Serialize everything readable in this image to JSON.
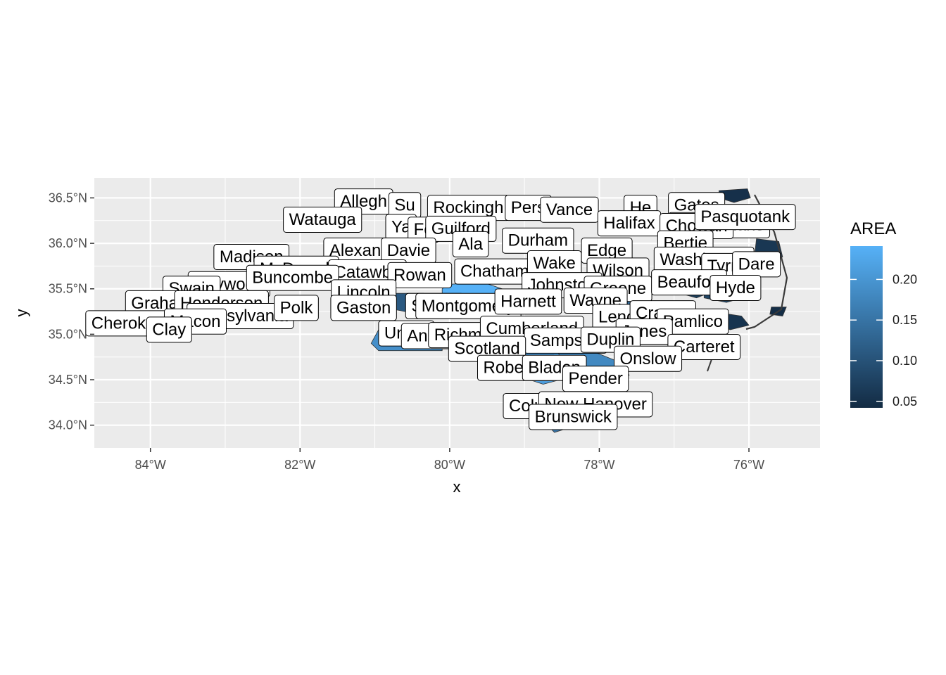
{
  "chart_data": {
    "type": "choropleth-map",
    "title": "",
    "xlabel": "x",
    "ylabel": "y",
    "xlim": [
      -84.75,
      -75.05
    ],
    "ylim": [
      33.75,
      36.72
    ],
    "x_ticks": [
      {
        "value": -84,
        "label": "84°W"
      },
      {
        "value": -82,
        "label": "82°W"
      },
      {
        "value": -80,
        "label": "80°W"
      },
      {
        "value": -78,
        "label": "78°W"
      },
      {
        "value": -76,
        "label": "76°W"
      }
    ],
    "y_ticks": [
      {
        "value": 34.0,
        "label": "34.0°N"
      },
      {
        "value": 34.5,
        "label": "34.5°N"
      },
      {
        "value": 35.0,
        "label": "35.0°N"
      },
      {
        "value": 35.5,
        "label": "35.5°N"
      },
      {
        "value": 36.0,
        "label": "36.0°N"
      },
      {
        "value": 36.5,
        "label": "36.5°N"
      }
    ],
    "grid": true,
    "legend": {
      "title": "AREA",
      "placement": "right",
      "min": 0.042,
      "max": 0.241,
      "low_color": "#132B43",
      "high_color": "#56B1F7",
      "ticks": [
        {
          "value": 0.05,
          "label": "0.05"
        },
        {
          "value": 0.1,
          "label": "0.10"
        },
        {
          "value": 0.15,
          "label": "0.15"
        },
        {
          "value": 0.2,
          "label": "0.20"
        }
      ]
    },
    "labels": [
      {
        "name": "Allegh",
        "x": -81.15,
        "y": 36.46
      },
      {
        "name": "Su",
        "x": -80.6,
        "y": 36.42
      },
      {
        "name": "Rockingh",
        "x": -79.75,
        "y": 36.39
      },
      {
        "name": "Pers",
        "x": -78.95,
        "y": 36.39
      },
      {
        "name": "Vance",
        "x": -78.4,
        "y": 36.37
      },
      {
        "name": "He",
        "x": -77.45,
        "y": 36.39
      },
      {
        "name": "Gates",
        "x": -76.7,
        "y": 36.42
      },
      {
        "name": "Watauga",
        "x": -81.7,
        "y": 36.26
      },
      {
        "name": "Ya",
        "x": -80.65,
        "y": 36.18
      },
      {
        "name": "Fo",
        "x": -80.35,
        "y": 36.15
      },
      {
        "name": "Guilford",
        "x": -79.85,
        "y": 36.16
      },
      {
        "name": "Halifax",
        "x": -77.6,
        "y": 36.22
      },
      {
        "name": "Perquimans",
        "x": -76.4,
        "y": 36.2
      },
      {
        "name": "Chowan",
        "x": -76.7,
        "y": 36.19
      },
      {
        "name": "Pasquotank",
        "x": -76.05,
        "y": 36.29
      },
      {
        "name": "Durham",
        "x": -78.82,
        "y": 36.03
      },
      {
        "name": "Ala",
        "x": -79.72,
        "y": 35.99
      },
      {
        "name": "Alexander",
        "x": -81.1,
        "y": 35.92
      },
      {
        "name": "Davie",
        "x": -80.55,
        "y": 35.92
      },
      {
        "name": "Edge",
        "x": -77.9,
        "y": 35.92
      },
      {
        "name": "Bertie",
        "x": -76.85,
        "y": 36.0
      },
      {
        "name": "Madison",
        "x": -82.65,
        "y": 35.85
      },
      {
        "name": "McDowell",
        "x": -82.05,
        "y": 35.72
      },
      {
        "name": "Catawba",
        "x": -81.1,
        "y": 35.68
      },
      {
        "name": "Rowan",
        "x": -80.4,
        "y": 35.65
      },
      {
        "name": "Chatham",
        "x": -79.4,
        "y": 35.69
      },
      {
        "name": "Wake",
        "x": -78.6,
        "y": 35.78
      },
      {
        "name": "Wilson",
        "x": -77.75,
        "y": 35.7
      },
      {
        "name": "Washington",
        "x": -76.6,
        "y": 35.82
      },
      {
        "name": "Tyrrell",
        "x": -76.25,
        "y": 35.75
      },
      {
        "name": "Dare",
        "x": -75.9,
        "y": 35.77
      },
      {
        "name": "Haywood",
        "x": -82.95,
        "y": 35.55
      },
      {
        "name": "Buncombe",
        "x": -82.1,
        "y": 35.62
      },
      {
        "name": "Swain",
        "x": -83.45,
        "y": 35.5
      },
      {
        "name": "Lincoln",
        "x": -81.15,
        "y": 35.46
      },
      {
        "name": "Johnston",
        "x": -78.5,
        "y": 35.54
      },
      {
        "name": "Greene",
        "x": -77.75,
        "y": 35.5
      },
      {
        "name": "Beaufort",
        "x": -76.8,
        "y": 35.57
      },
      {
        "name": "Hyde",
        "x": -76.18,
        "y": 35.51
      },
      {
        "name": "Graham",
        "x": -83.85,
        "y": 35.34
      },
      {
        "name": "Henderson",
        "x": -83.05,
        "y": 35.34
      },
      {
        "name": "Transylvania",
        "x": -82.8,
        "y": 35.2
      },
      {
        "name": "Polk",
        "x": -82.05,
        "y": 35.29
      },
      {
        "name": "Gaston",
        "x": -81.15,
        "y": 35.29
      },
      {
        "name": "Stanly",
        "x": -80.2,
        "y": 35.31
      },
      {
        "name": "Montgomery",
        "x": -79.75,
        "y": 35.31
      },
      {
        "name": "Harnett",
        "x": -78.95,
        "y": 35.36
      },
      {
        "name": "Wayne",
        "x": -78.05,
        "y": 35.37
      },
      {
        "name": "Lenoir",
        "x": -77.7,
        "y": 35.19
      },
      {
        "name": "Craven",
        "x": -77.15,
        "y": 35.23
      },
      {
        "name": "Pamlico",
        "x": -76.75,
        "y": 35.14
      },
      {
        "name": "Cherokee",
        "x": -84.3,
        "y": 35.12
      },
      {
        "name": "Macon",
        "x": -83.4,
        "y": 35.14
      },
      {
        "name": "Clay",
        "x": -83.75,
        "y": 35.05
      },
      {
        "name": "Union",
        "x": -80.58,
        "y": 35.01
      },
      {
        "name": "Anson",
        "x": -80.25,
        "y": 34.98
      },
      {
        "name": "Richmond",
        "x": -79.7,
        "y": 34.99
      },
      {
        "name": "Cumberland",
        "x": -78.9,
        "y": 35.06
      },
      {
        "name": "Jones",
        "x": -77.4,
        "y": 35.03
      },
      {
        "name": "Sampson",
        "x": -78.45,
        "y": 34.93
      },
      {
        "name": "Duplin",
        "x": -77.85,
        "y": 34.94
      },
      {
        "name": "Carteret",
        "x": -76.6,
        "y": 34.86
      },
      {
        "name": "Scotland",
        "x": -79.5,
        "y": 34.84
      },
      {
        "name": "Onslow",
        "x": -77.35,
        "y": 34.73
      },
      {
        "name": "Robeson",
        "x": -79.1,
        "y": 34.63
      },
      {
        "name": "Bladen",
        "x": -78.6,
        "y": 34.63
      },
      {
        "name": "Pender",
        "x": -78.05,
        "y": 34.51
      },
      {
        "name": "Columbus",
        "x": -78.7,
        "y": 34.21
      },
      {
        "name": "New Hanover",
        "x": -78.05,
        "y": 34.23
      },
      {
        "name": "Brunswick",
        "x": -78.35,
        "y": 34.09
      }
    ],
    "regions": [
      {
        "area": 0.241,
        "coords": [
          [
            -80.0,
            35.55
          ],
          [
            -79.55,
            35.57
          ],
          [
            -79.3,
            35.5
          ],
          [
            -79.2,
            35.4
          ],
          [
            -79.3,
            35.3
          ],
          [
            -79.6,
            35.2
          ],
          [
            -79.9,
            35.25
          ],
          [
            -80.1,
            35.35
          ],
          [
            -80.1,
            35.5
          ]
        ]
      },
      {
        "area": 0.191,
        "coords": [
          [
            -80.95,
            35.05
          ],
          [
            -80.3,
            35.1
          ],
          [
            -80.1,
            35.05
          ],
          [
            -80.1,
            34.82
          ],
          [
            -80.95,
            34.82
          ],
          [
            -81.05,
            34.9
          ]
        ]
      },
      {
        "area": 0.212,
        "coords": [
          [
            -79.3,
            34.9
          ],
          [
            -78.75,
            35.0
          ],
          [
            -78.4,
            34.85
          ],
          [
            -78.2,
            34.7
          ],
          [
            -78.3,
            34.55
          ],
          [
            -78.75,
            34.45
          ],
          [
            -79.3,
            34.6
          ],
          [
            -79.45,
            34.75
          ]
        ]
      },
      {
        "area": 0.181,
        "coords": [
          [
            -78.55,
            34.8
          ],
          [
            -78.2,
            34.85
          ],
          [
            -77.75,
            34.7
          ],
          [
            -77.6,
            34.55
          ],
          [
            -77.9,
            34.45
          ],
          [
            -78.3,
            34.45
          ],
          [
            -78.45,
            34.6
          ]
        ]
      },
      {
        "area": 0.16,
        "coords": [
          [
            -78.8,
            34.3
          ],
          [
            -78.2,
            34.3
          ],
          [
            -78.0,
            34.15
          ],
          [
            -78.3,
            34.0
          ],
          [
            -78.6,
            33.92
          ],
          [
            -78.75,
            34.05
          ]
        ]
      },
      {
        "area": 0.13,
        "coords": [
          [
            -77.6,
            35.2
          ],
          [
            -77.1,
            35.25
          ],
          [
            -76.9,
            35.15
          ],
          [
            -77.0,
            35.0
          ],
          [
            -77.3,
            34.95
          ],
          [
            -77.6,
            35.05
          ]
        ]
      },
      {
        "area": 0.14,
        "coords": [
          [
            -77.9,
            35.45
          ],
          [
            -77.45,
            35.48
          ],
          [
            -77.3,
            35.35
          ],
          [
            -77.6,
            35.25
          ],
          [
            -77.95,
            35.3
          ]
        ]
      },
      {
        "area": 0.11,
        "coords": [
          [
            -80.9,
            35.45
          ],
          [
            -80.35,
            35.45
          ],
          [
            -80.25,
            35.35
          ],
          [
            -80.6,
            35.25
          ],
          [
            -80.9,
            35.3
          ]
        ]
      },
      {
        "area": 0.07,
        "coords": [
          [
            -77.0,
            35.65
          ],
          [
            -76.6,
            35.62
          ],
          [
            -76.4,
            35.5
          ],
          [
            -76.7,
            35.4
          ],
          [
            -77.05,
            35.48
          ]
        ]
      },
      {
        "area": 0.08,
        "coords": [
          [
            -76.6,
            35.55
          ],
          [
            -76.2,
            35.5
          ],
          [
            -76.0,
            35.42
          ],
          [
            -76.3,
            35.35
          ],
          [
            -76.6,
            35.4
          ]
        ]
      },
      {
        "area": 0.055,
        "coords": [
          [
            -76.5,
            35.25
          ],
          [
            -76.1,
            35.2
          ],
          [
            -76.0,
            35.1
          ],
          [
            -76.25,
            35.05
          ],
          [
            -76.5,
            35.12
          ]
        ]
      },
      {
        "area": 0.05,
        "coords": [
          [
            -76.4,
            36.58
          ],
          [
            -76.02,
            36.6
          ],
          [
            -75.98,
            36.5
          ],
          [
            -76.2,
            36.45
          ],
          [
            -76.4,
            36.5
          ]
        ]
      },
      {
        "area": 0.06,
        "coords": [
          [
            -75.9,
            36.05
          ],
          [
            -75.6,
            36.02
          ],
          [
            -75.55,
            35.85
          ],
          [
            -75.75,
            35.8
          ],
          [
            -75.92,
            35.9
          ]
        ]
      },
      {
        "area": 0.045,
        "coords": [
          [
            -75.7,
            35.3
          ],
          [
            -75.5,
            35.3
          ],
          [
            -75.55,
            35.2
          ],
          [
            -75.72,
            35.22
          ]
        ]
      }
    ]
  }
}
